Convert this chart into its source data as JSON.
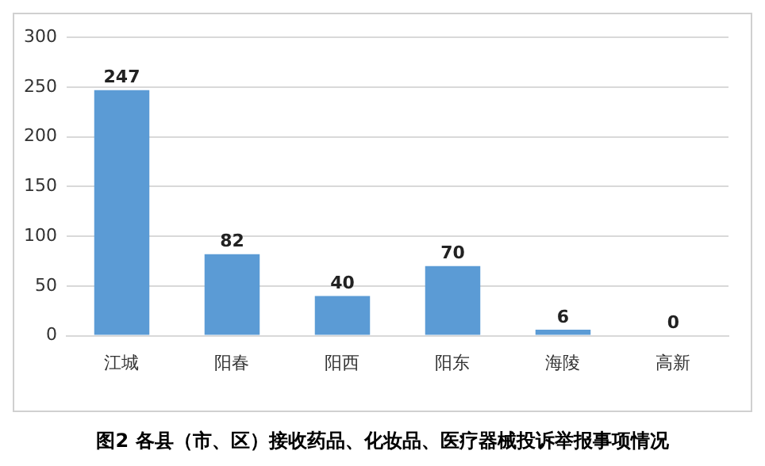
{
  "chart_data": {
    "type": "bar",
    "title": "图2 各县（市、区）接收药品、化妆品、医疗器械投诉举报事项情况",
    "categories": [
      "江城",
      "阳春",
      "阳西",
      "阳东",
      "海陵",
      "高新"
    ],
    "values": [
      247,
      82,
      40,
      70,
      6,
      0
    ],
    "color": "#5b9bd5",
    "ylim": [
      0,
      300
    ],
    "yticks": [
      0,
      50,
      100,
      150,
      200,
      250,
      300
    ],
    "grid": "y",
    "data_labels": true
  }
}
